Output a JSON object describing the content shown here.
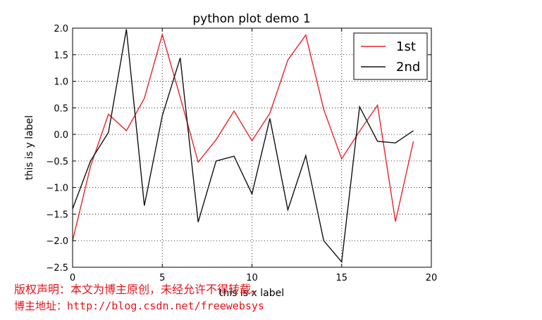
{
  "chart_data": {
    "type": "line",
    "title": "python plot demo 1",
    "xlabel": "this is x label",
    "ylabel": "this is y label",
    "xlim": [
      0,
      20
    ],
    "ylim": [
      -2.5,
      2.0
    ],
    "xticks": [
      0,
      5,
      10,
      15,
      20
    ],
    "xtick_labels": [
      "0",
      "5",
      "10",
      "15",
      "20"
    ],
    "yticks": [
      -2.5,
      -2.0,
      -1.5,
      -1.0,
      -0.5,
      0.0,
      0.5,
      1.0,
      1.5,
      2.0
    ],
    "ytick_labels": [
      "−2.5",
      "−2.0",
      "−1.5",
      "−1.0",
      "−0.5",
      "0.0",
      "0.5",
      "1.0",
      "1.5",
      "2.0"
    ],
    "grid": true,
    "legend_position": "top-right",
    "x": [
      0,
      1,
      2,
      3,
      4,
      5,
      6,
      7,
      8,
      9,
      10,
      11,
      12,
      13,
      14,
      15,
      16,
      17,
      18,
      19
    ],
    "series": [
      {
        "name": "1st",
        "color": "#e8242b",
        "values": [
          -2.0,
          -0.6,
          0.38,
          0.07,
          0.68,
          1.88,
          0.7,
          -0.52,
          -0.1,
          0.44,
          -0.12,
          0.4,
          1.4,
          1.87,
          0.47,
          -0.46,
          0.06,
          0.55,
          -1.64,
          -0.13
        ]
      },
      {
        "name": "2nd",
        "color": "#111111",
        "values": [
          -1.4,
          -0.5,
          0.04,
          1.98,
          -1.34,
          0.35,
          1.44,
          -1.65,
          -0.5,
          -0.41,
          -1.12,
          0.3,
          -1.42,
          -0.4,
          -2.0,
          -2.4,
          0.52,
          -0.13,
          -0.16,
          0.07
        ]
      }
    ]
  },
  "watermark": {
    "line1": "版权声明：本文为博主原创，未经允许不得转载。",
    "line2": "博主地址：http://blog.csdn.net/freewebsys"
  }
}
